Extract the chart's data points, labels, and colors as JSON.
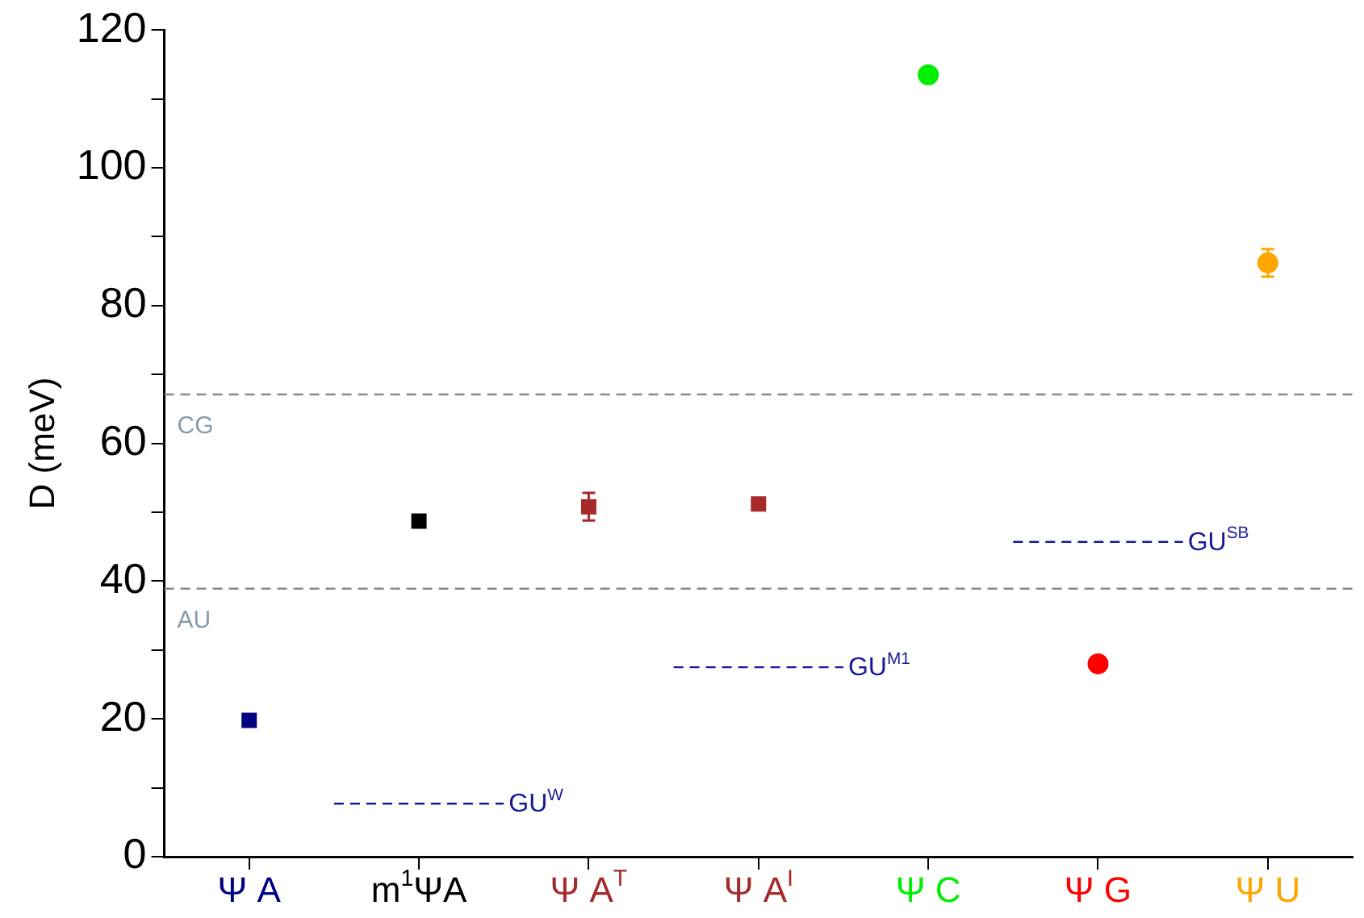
{
  "chart_data": {
    "type": "scatter",
    "ylabel": "D (meV)",
    "categories": [
      "Ψ A",
      "m$^{1}$ΨA",
      "Ψ A$^{T}$",
      "Ψ A$^{I}$",
      "Ψ C",
      "Ψ G",
      "Ψ U"
    ],
    "series": [
      {
        "color": "#000080",
        "marker": "square",
        "values": [
          19.8,
          null,
          null,
          null,
          null,
          null,
          null
        ]
      },
      {
        "color": "#000000",
        "marker": "square",
        "values": [
          null,
          48.7,
          null,
          null,
          null,
          null,
          null
        ]
      },
      {
        "color": "#a52a2a",
        "marker": "square",
        "values": [
          null,
          null,
          50.8,
          null,
          null,
          null,
          null
        ],
        "errors": [
          null,
          null,
          2,
          null,
          null,
          null,
          null
        ]
      },
      {
        "color": "#a52a2a",
        "marker": "square",
        "values": [
          null,
          null,
          null,
          51.2,
          null,
          null,
          null
        ]
      },
      {
        "color": "#00ee00",
        "marker": "circle",
        "values": [
          null,
          null,
          null,
          null,
          113.5,
          null,
          null
        ]
      },
      {
        "color": "#ff0000",
        "marker": "circle",
        "values": [
          null,
          null,
          null,
          null,
          null,
          28,
          null
        ],
        "errors": [
          null,
          null,
          null,
          null,
          null,
          1,
          null
        ]
      },
      {
        "color": "#ffa500",
        "marker": "circle",
        "values": [
          null,
          null,
          null,
          null,
          null,
          null,
          86.2
        ],
        "errors": [
          null,
          null,
          null,
          null,
          null,
          null,
          2
        ]
      }
    ],
    "ylim": [
      0,
      120
    ],
    "yticks": [
      0,
      {
        "value": 10,
        "label": null
      },
      20,
      {
        "value": 30,
        "label": null
      },
      40,
      {
        "value": 50,
        "label": null
      },
      60,
      {
        "value": 70,
        "label": null
      },
      80,
      {
        "value": 90,
        "label": null
      },
      100,
      {
        "value": 110,
        "label": null
      },
      120
    ],
    "ref_lines": [
      {
        "axis": "y",
        "value": 67.1,
        "label": "CG",
        "color": "#888888",
        "line_style": "dashed"
      },
      {
        "axis": "y",
        "value": 38.9,
        "label": "AU",
        "color": "#888888",
        "line_style": "dashed"
      },
      {
        "axis": "y",
        "value": 7.7,
        "label": "GU$^{W}$",
        "color": "#1a1a99",
        "line_style": "dashed"
      },
      {
        "axis": "y",
        "value": 27.5,
        "label": "GU$^{M1}$",
        "color": "#1a1a99",
        "line_style": "dashed"
      },
      {
        "axis": "y",
        "value": 45.7,
        "label": "GU$^{SB}$",
        "color": "#1a1a99",
        "line_style": "dashed"
      }
    ],
    "grid": false,
    "legend": false
  }
}
